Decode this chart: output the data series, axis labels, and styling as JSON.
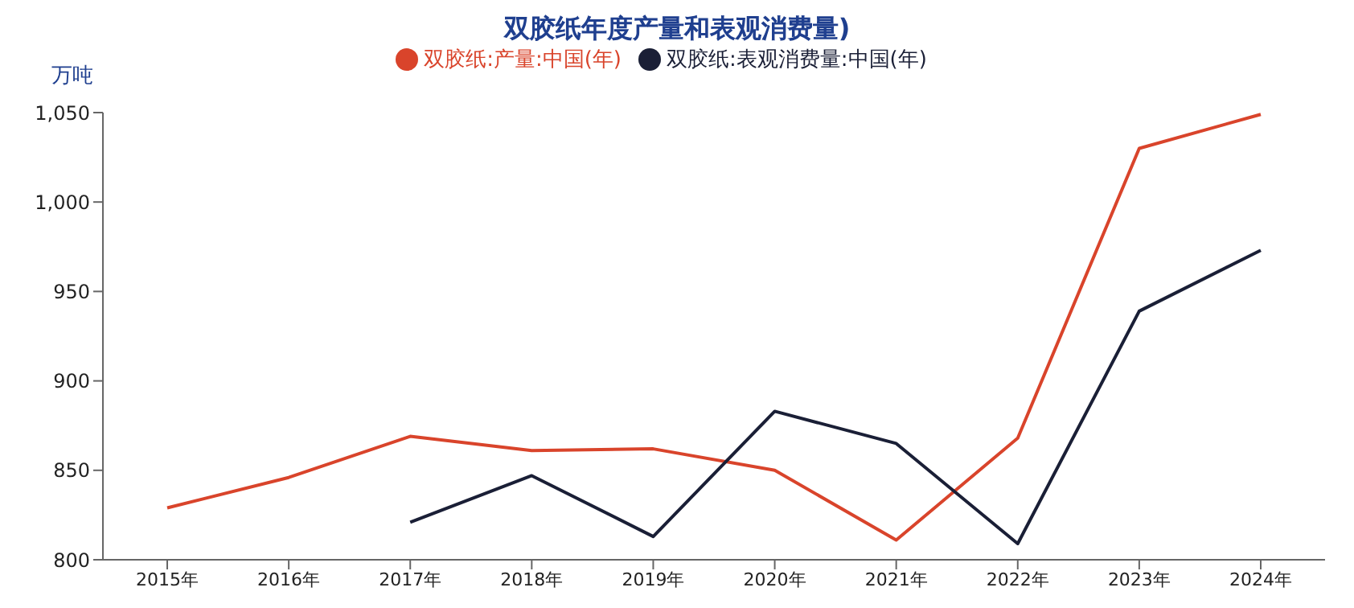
{
  "chart_data": {
    "type": "line",
    "title": "双胶纸年度产量和表观消费量)",
    "ylabel": "万吨",
    "categories": [
      "2015年",
      "2016年",
      "2017年",
      "2018年",
      "2019年",
      "2020年",
      "2021年",
      "2022年",
      "2023年",
      "2024年"
    ],
    "series": [
      {
        "name": "双胶纸:产量:中国(年)",
        "color": "#d9442b",
        "values": [
          829,
          846,
          869,
          861,
          862,
          850,
          811,
          868,
          1030,
          1049
        ]
      },
      {
        "name": "双胶纸:表观消费量:中国(年)",
        "color": "#1a1f36",
        "values": [
          null,
          null,
          821,
          847,
          813,
          883,
          865,
          809,
          939,
          973
        ]
      }
    ],
    "ylim": [
      800,
      1050
    ],
    "yticks": [
      800,
      850,
      900,
      950,
      {
        "value": 1000,
        "label": "1,000"
      },
      {
        "value": 1050,
        "label": "1,050"
      }
    ],
    "grid": false,
    "legend": "top",
    "marker": "none",
    "line_style": "solid"
  }
}
